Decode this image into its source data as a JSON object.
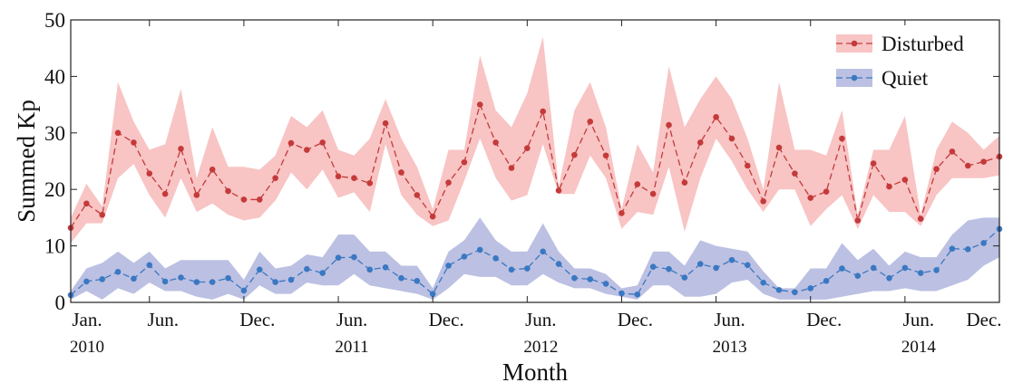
{
  "chart_data": {
    "type": "line",
    "xlabel": "Month",
    "ylabel": "Summed Kp",
    "x": [
      0,
      1,
      2,
      3,
      4,
      5,
      6,
      7,
      8,
      9,
      10,
      11,
      12,
      13,
      14,
      15,
      16,
      17,
      18,
      19,
      20,
      21,
      22,
      23,
      24,
      25,
      26,
      27,
      28,
      29,
      30,
      31,
      32,
      33,
      34,
      35,
      36,
      37,
      38,
      39,
      40,
      41,
      42,
      43,
      44,
      45,
      46,
      47,
      48,
      49,
      50,
      51,
      52,
      53,
      54,
      55,
      56,
      57,
      58,
      59
    ],
    "xlim": [
      0,
      59
    ],
    "xticks": [
      {
        "value": 0,
        "label": "Jan.",
        "sublabel": "2010"
      },
      {
        "value": 5,
        "label": "Jun."
      },
      {
        "value": 11,
        "label": "Dec."
      },
      {
        "value": 17,
        "label": "Jun.",
        "sublabel": "2011"
      },
      {
        "value": 23,
        "label": "Dec."
      },
      {
        "value": 29,
        "label": "Jun.",
        "sublabel": "2012"
      },
      {
        "value": 35,
        "label": "Dec."
      },
      {
        "value": 41,
        "label": "Jun.",
        "sublabel": "2013"
      },
      {
        "value": 47,
        "label": "Dec."
      },
      {
        "value": 53,
        "label": "Jun.",
        "sublabel": "2014"
      },
      {
        "value": 59,
        "label": "Dec."
      }
    ],
    "ylim": [
      0,
      50
    ],
    "yticks": [
      0,
      10,
      20,
      30,
      40,
      50
    ],
    "legend": "upper right",
    "series": [
      {
        "name": "Disturbed",
        "color": "#c43a3a",
        "band_color": "#f8c4c4",
        "values": [
          13.2,
          17.5,
          15.5,
          30,
          28.3,
          22.8,
          19.2,
          27.2,
          19,
          23.5,
          19.7,
          18.2,
          18.2,
          22,
          28.2,
          27,
          28.3,
          22.3,
          22,
          21.1,
          31.7,
          23,
          19,
          15.2,
          21.2,
          24.8,
          35,
          28.3,
          23.8,
          27.3,
          33.8,
          19.8,
          26.1,
          32,
          26,
          15.8,
          20.9,
          19.2,
          31.4,
          21.2,
          28.3,
          32.8,
          29,
          24.2,
          17.9,
          27.4,
          22.8,
          18.5,
          19.6,
          29,
          14.5,
          24.6,
          20.5,
          21.7,
          14.8,
          23.6,
          26.7,
          24.2,
          24.9,
          25.8
        ],
        "band_high": [
          15,
          21,
          17,
          39,
          32,
          27,
          28,
          37.8,
          22,
          31,
          24,
          24,
          23.5,
          26,
          33,
          31,
          34,
          27,
          26,
          29,
          36,
          29,
          24,
          16.5,
          27,
          27,
          43.7,
          34,
          31,
          37,
          47,
          20.5,
          34,
          39,
          31,
          16.5,
          28,
          23,
          41.8,
          31,
          36,
          40,
          36,
          29,
          20,
          39,
          27,
          27,
          26,
          34,
          15.5,
          27,
          27,
          33,
          15.5,
          27,
          32,
          30,
          27,
          29.5
        ],
        "band_low": [
          10.5,
          14,
          14,
          22,
          24.5,
          19,
          15,
          22,
          16,
          17.5,
          15.5,
          14.5,
          15,
          18,
          23,
          20,
          23.5,
          18.5,
          19.5,
          16,
          28,
          19,
          15.5,
          13.5,
          14.5,
          21.5,
          29,
          22,
          18,
          19,
          28,
          19.2,
          19.2,
          26,
          22,
          13,
          16,
          15.5,
          24,
          12.5,
          22,
          29,
          25,
          20,
          16,
          20,
          20,
          13.5,
          16.5,
          19,
          13,
          19,
          16,
          16,
          13.5,
          19,
          22,
          22,
          22,
          22.5
        ]
      },
      {
        "name": "Quiet",
        "color": "#3a78c2",
        "band_color": "#bcc0e2",
        "values": [
          1.3,
          3.7,
          4.1,
          5.4,
          4.2,
          6.6,
          3.7,
          4.4,
          3.6,
          3.6,
          4.3,
          2.1,
          5.8,
          3.6,
          4,
          5.9,
          5.2,
          7.9,
          8,
          5.8,
          6.2,
          4.3,
          3.8,
          1.5,
          6.5,
          8.1,
          9.3,
          7.8,
          5.8,
          6,
          9,
          6.8,
          4.3,
          4.1,
          3.3,
          1.6,
          1.4,
          6.3,
          5.9,
          4.4,
          6.8,
          6.1,
          7.5,
          6.6,
          3.5,
          2.2,
          1.8,
          2.5,
          3.8,
          6,
          4.7,
          6.1,
          4.3,
          6.1,
          5.2,
          5.7,
          9.5,
          9.4,
          10.5,
          13
        ],
        "band_high": [
          2,
          6,
          7,
          9,
          7,
          9,
          6,
          7.5,
          7.5,
          7.5,
          7.5,
          4,
          9,
          6,
          6.5,
          8.5,
          8,
          12,
          12,
          9,
          9,
          6.5,
          6.5,
          2.5,
          9,
          11,
          15,
          11,
          9,
          9,
          14,
          9,
          6,
          6,
          5,
          2.5,
          3,
          9,
          9,
          6.5,
          11,
          10,
          9.5,
          9,
          5.5,
          2.5,
          2.5,
          6,
          6,
          10.5,
          7.5,
          9.5,
          6.5,
          9,
          8,
          8,
          12,
          14.5,
          15,
          15
        ],
        "band_low": [
          0.5,
          2,
          0.5,
          2.5,
          1.5,
          3.5,
          2,
          2,
          1,
          0.5,
          1.5,
          0.5,
          3,
          1.5,
          1.5,
          3.5,
          3,
          3,
          5,
          3,
          2.5,
          2,
          1.5,
          0.5,
          2.5,
          5,
          4.5,
          4.5,
          3,
          3,
          5,
          3.5,
          2.5,
          2.5,
          1.5,
          1,
          0.5,
          3,
          3,
          1,
          1,
          1.5,
          3.5,
          4,
          1.5,
          0.5,
          0.5,
          0.5,
          0.5,
          1,
          1.5,
          2,
          2,
          2.5,
          2,
          2,
          3,
          4,
          6.5,
          8
        ]
      }
    ]
  }
}
